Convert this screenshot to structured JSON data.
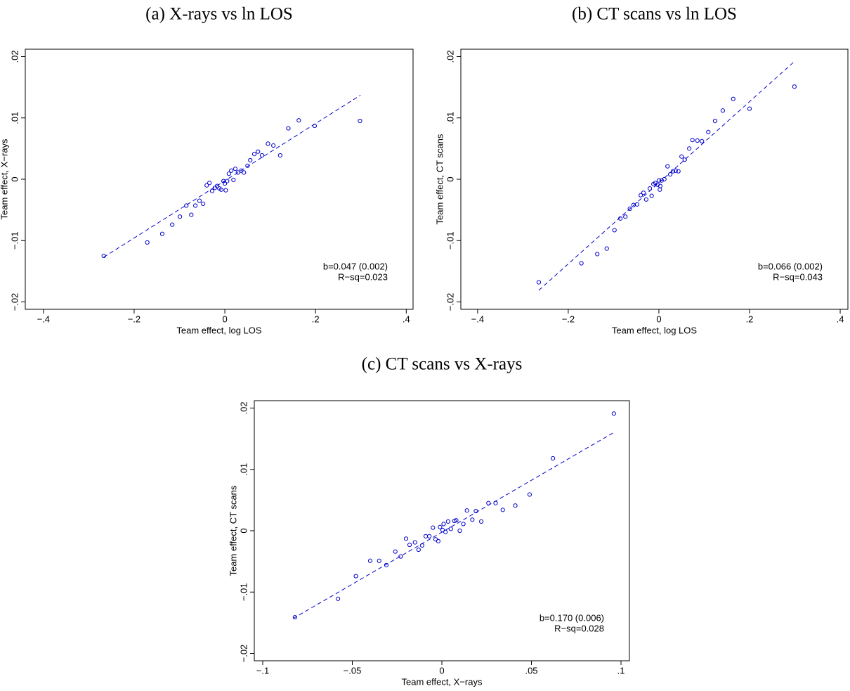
{
  "chart_data": [
    {
      "type": "scatter",
      "title": "(a) X-rays vs ln LOS",
      "x_label": "Team effect, log LOS",
      "y_label": "Team effect, X−rays",
      "color": "#0000cc",
      "xlim": [
        -0.44,
        0.415
      ],
      "ylim": [
        -0.0212,
        0.0212
      ],
      "xticks": [
        {
          "value": -0.4,
          "label": "−.4"
        },
        {
          "value": -0.2,
          "label": "−.2"
        },
        0,
        {
          "value": 0.2,
          "label": ".2"
        },
        {
          "value": 0.4,
          "label": ".4"
        }
      ],
      "yticks": [
        {
          "value": -0.02,
          "label": "−.02"
        },
        {
          "value": -0.01,
          "label": "−.01"
        },
        0,
        {
          "value": 0.01,
          "label": ".01"
        },
        {
          "value": 0.02,
          "label": ".02"
        }
      ],
      "annotation": [
        "b=0.047 (0.002)",
        "R−sq=0.023"
      ],
      "fit": {
        "x": [
          -0.267,
          0.299
        ],
        "y": [
          -0.0127,
          0.0137
        ]
      },
      "x": [
        -0.267,
        -0.171,
        -0.138,
        -0.116,
        -0.099,
        -0.085,
        -0.074,
        -0.065,
        -0.056,
        -0.048,
        -0.04,
        -0.034,
        -0.028,
        -0.022,
        -0.017,
        -0.012,
        -0.008,
        -0.003,
        0,
        0.002,
        0.005,
        0.009,
        0.014,
        0.019,
        0.023,
        0.029,
        0.036,
        0.042,
        0.05,
        0.056,
        0.065,
        0.073,
        0.082,
        0.095,
        0.107,
        0.122,
        0.14,
        0.163,
        0.198,
        0.298
      ],
      "y": [
        -0.0125,
        -0.0103,
        -0.0089,
        -0.0074,
        -0.0061,
        -0.0043,
        -0.0058,
        -0.0043,
        -0.0035,
        -0.004,
        -0.001,
        -0.0006,
        -0.0019,
        -0.0014,
        -0.0011,
        -0.0015,
        -0.0017,
        -0.0003,
        -0.0007,
        -0.0018,
        -0.0003,
        0.0009,
        0.0014,
        -0.0001,
        0.0017,
        0.0011,
        0.0014,
        0.0011,
        0.0022,
        0.0031,
        0.0041,
        0.0045,
        0.0039,
        0.0058,
        0.0055,
        0.0039,
        0.0083,
        0.0096,
        0.0087,
        0.0095
      ]
    },
    {
      "type": "scatter",
      "title": "(b) CT scans vs ln LOS",
      "x_label": "Team effect, log LOS",
      "y_label": "Team effect, CT scans",
      "color": "#0000cc",
      "xlim": [
        -0.437,
        0.417
      ],
      "ylim": [
        -0.0212,
        0.0212
      ],
      "xticks": [
        {
          "value": -0.4,
          "label": "−.4"
        },
        {
          "value": -0.2,
          "label": "−.2"
        },
        0,
        {
          "value": 0.2,
          "label": ".2"
        },
        {
          "value": 0.4,
          "label": ".4"
        }
      ],
      "yticks": [
        {
          "value": -0.02,
          "label": "−.02"
        },
        {
          "value": -0.01,
          "label": "−.01"
        },
        0,
        {
          "value": 0.01,
          "label": ".01"
        },
        {
          "value": 0.02,
          "label": ".02"
        }
      ],
      "annotation": [
        "b=0.066 (0.002)",
        "R−sq=0.043"
      ],
      "fit": {
        "x": [
          -0.265,
          0.299
        ],
        "y": [
          -0.0181,
          0.0192
        ]
      },
      "x": [
        -0.265,
        -0.171,
        -0.136,
        -0.115,
        -0.098,
        -0.085,
        -0.074,
        -0.064,
        -0.056,
        -0.048,
        -0.04,
        -0.034,
        -0.028,
        -0.02,
        -0.016,
        -0.012,
        -0.008,
        -0.003,
        0,
        0.002,
        0.003,
        0.006,
        0.012,
        0.019,
        0.025,
        0.031,
        0.037,
        0.043,
        0.05,
        0.057,
        0.067,
        0.074,
        0.085,
        0.095,
        0.109,
        0.124,
        0.141,
        0.164,
        0.2,
        0.299
      ],
      "y": [
        -0.0168,
        -0.0137,
        -0.0122,
        -0.0113,
        -0.0083,
        -0.0064,
        -0.0061,
        -0.0048,
        -0.0042,
        -0.0041,
        -0.0026,
        -0.0022,
        -0.0033,
        -0.0015,
        -0.0027,
        -0.0008,
        -0.0006,
        -0.0009,
        -0.0002,
        -0.0017,
        -0.0011,
        -0.0002,
        0,
        0.0021,
        0.0008,
        0.0013,
        0.0014,
        0.0013,
        0.0037,
        0.0032,
        0.005,
        0.0064,
        0.0063,
        0.0062,
        0.0077,
        0.0095,
        0.0112,
        0.0131,
        0.0115,
        0.0151
      ]
    },
    {
      "type": "scatter",
      "title": "(c) CT scans vs X-rays",
      "x_label": "Team effect, X−rays",
      "y_label": "Team effect, CT scans",
      "color": "#0000cc",
      "xlim": [
        -0.1047,
        0.1047
      ],
      "ylim": [
        -0.0212,
        0.0212
      ],
      "xticks": [
        {
          "value": -0.1,
          "label": "−.1"
        },
        {
          "value": -0.05,
          "label": "−.05"
        },
        0,
        {
          "value": 0.05,
          "label": ".05"
        },
        {
          "value": 0.1,
          "label": ".1"
        }
      ],
      "yticks": [
        {
          "value": -0.02,
          "label": "−.02"
        },
        {
          "value": -0.01,
          "label": "−.01"
        },
        0,
        {
          "value": 0.01,
          "label": ".01"
        },
        {
          "value": 0.02,
          "label": ".02"
        }
      ],
      "annotation": [
        "b=0.170 (0.006)",
        "R−sq=0.028"
      ],
      "fit": {
        "x": [
          -0.083,
          0.0965
        ],
        "y": [
          -0.0143,
          0.0161
        ]
      },
      "x": [
        -0.082,
        -0.058,
        -0.048,
        -0.04,
        -0.035,
        -0.031,
        -0.026,
        -0.023,
        -0.02,
        -0.018,
        -0.015,
        -0.013,
        -0.011,
        -0.009,
        -0.007,
        -0.005,
        -0.0035,
        -0.002,
        -0.001,
        0.0004,
        0.001,
        0.002,
        0.0035,
        0.005,
        0.007,
        0.008,
        0.01,
        0.012,
        0.014,
        0.017,
        0.019,
        0.022,
        0.026,
        0.03,
        0.034,
        0.041,
        0.049,
        0.062,
        0.096
      ],
      "y": [
        -0.0141,
        -0.0111,
        -0.0074,
        -0.0049,
        -0.0049,
        -0.0056,
        -0.0034,
        -0.0042,
        -0.0013,
        -0.0023,
        -0.0019,
        -0.0031,
        -0.0024,
        -0.0009,
        -0.0009,
        0.0005,
        -0.0014,
        -0.0017,
        0.0006,
        0.0001,
        0.0011,
        -0.0002,
        0.0015,
        0.0003,
        0.0016,
        0.0017,
        0,
        0.0011,
        0.0033,
        0.0018,
        0.0032,
        0.0015,
        0.0045,
        0.0045,
        0.0034,
        0.0041,
        0.0059,
        0.0118,
        0.0191
      ]
    }
  ]
}
